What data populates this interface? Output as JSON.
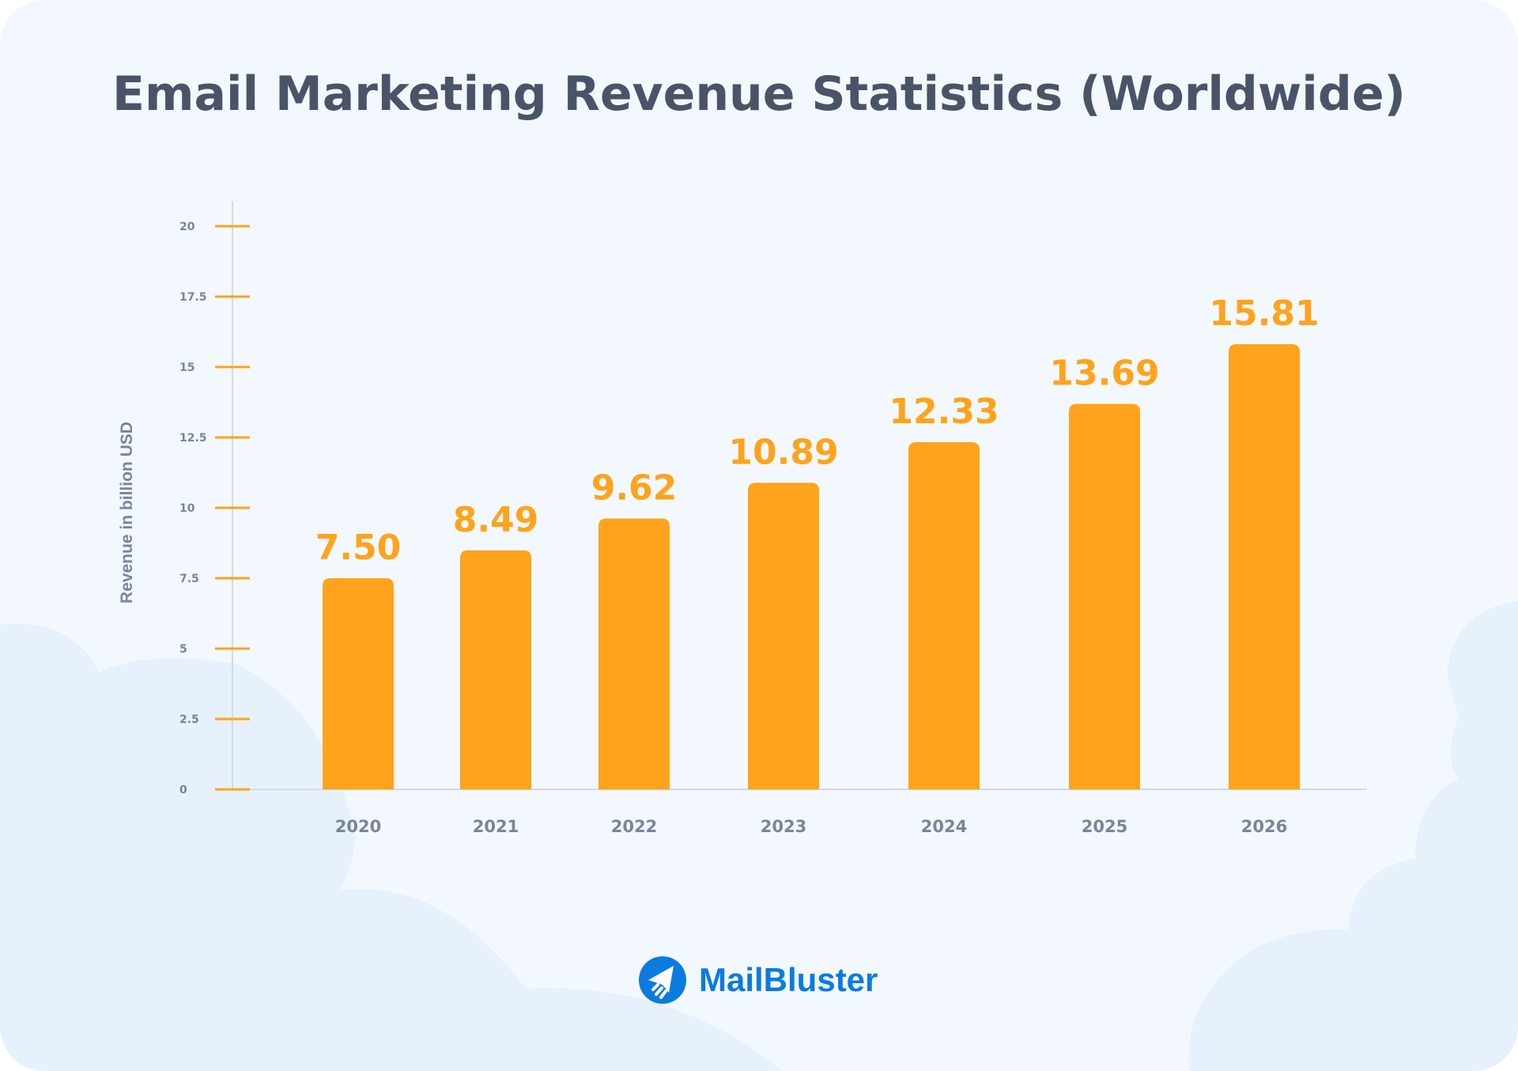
{
  "title": "Email Marketing Revenue Statistics (Worldwide)",
  "brand": {
    "name": "MailBluster",
    "color": "#0b7be0",
    "icon": "paper-plane-icon"
  },
  "colors": {
    "bar": "#fea31b",
    "axis_text": "#7a8499",
    "background": "#f3f8fe",
    "cloud": "#e6f1fb"
  },
  "chart_data": {
    "type": "bar",
    "title": "Email Marketing Revenue Statistics (Worldwide)",
    "xlabel": "",
    "ylabel": "Revenue in billion USD",
    "categories": [
      "2020",
      "2021",
      "2022",
      "2023",
      "2024",
      "2025",
      "2026"
    ],
    "values": [
      7.5,
      8.49,
      9.62,
      10.89,
      12.33,
      13.69,
      15.81
    ],
    "value_labels": [
      "7.50",
      "8.49",
      "9.62",
      "10.89",
      "12.33",
      "13.69",
      "15.81"
    ],
    "yticks": [
      "0",
      "2.5",
      "5",
      "7.5",
      "10",
      "12.5",
      "15",
      "17.5",
      "20"
    ],
    "ylim": [
      0,
      20
    ],
    "grid": false,
    "legend": "none"
  }
}
